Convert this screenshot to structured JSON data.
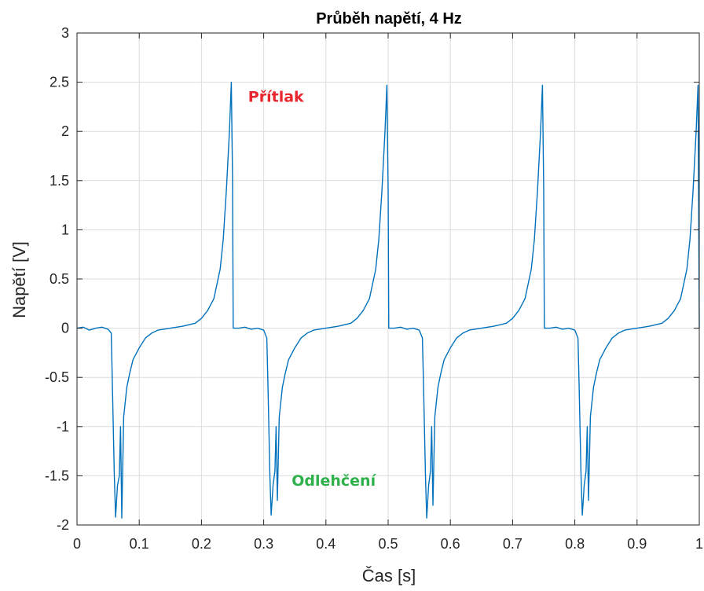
{
  "chart_data": {
    "type": "line",
    "title": "Průběh napětí, 4 Hz",
    "xlabel": "Čas [s]",
    "ylabel": "Napětí [V]",
    "xlim": [
      0,
      1
    ],
    "ylim": [
      -2,
      3
    ],
    "xticks": [
      "0",
      "0.1",
      "0.2",
      "0.3",
      "0.4",
      "0.5",
      "0.6",
      "0.7",
      "0.8",
      "0.9",
      "1"
    ],
    "yticks": [
      "3",
      "2.5",
      "2",
      "1.5",
      "1",
      "0.5",
      "0",
      "-0.5",
      "-1",
      "-1.5",
      "-2"
    ],
    "grid": true,
    "line_color": "#0072bd",
    "annotations": [
      {
        "text": "Přítlak",
        "color": "#e8262e",
        "x": 0.275,
        "y": 2.3
      },
      {
        "text": "Odlehčení",
        "color": "#2eb04a",
        "x": 0.345,
        "y": -1.6
      }
    ],
    "series": [
      {
        "x": [
          0,
          0.01,
          0.02,
          0.03,
          0.04,
          0.05,
          0.055,
          0.057,
          0.06,
          0.062,
          0.065,
          0.068,
          0.07,
          0.072,
          0.075,
          0.08,
          0.085,
          0.09,
          0.1,
          0.11,
          0.12,
          0.13,
          0.15,
          0.17,
          0.19,
          0.2,
          0.21,
          0.22,
          0.23,
          0.235,
          0.24,
          0.245,
          0.248,
          0.25,
          0.251,
          0.26,
          0.27,
          0.28,
          0.29,
          0.3,
          0.305,
          0.307,
          0.31,
          0.312,
          0.315,
          0.318,
          0.32,
          0.322,
          0.325,
          0.33,
          0.335,
          0.34,
          0.35,
          0.36,
          0.37,
          0.38,
          0.4,
          0.42,
          0.44,
          0.45,
          0.46,
          0.47,
          0.48,
          0.485,
          0.49,
          0.495,
          0.498,
          0.5,
          0.501,
          0.51,
          0.52,
          0.53,
          0.54,
          0.55,
          0.555,
          0.557,
          0.56,
          0.562,
          0.565,
          0.568,
          0.57,
          0.572,
          0.575,
          0.58,
          0.585,
          0.59,
          0.6,
          0.61,
          0.62,
          0.63,
          0.65,
          0.67,
          0.69,
          0.7,
          0.71,
          0.72,
          0.73,
          0.735,
          0.74,
          0.745,
          0.748,
          0.75,
          0.751,
          0.76,
          0.77,
          0.78,
          0.79,
          0.8,
          0.805,
          0.807,
          0.81,
          0.812,
          0.815,
          0.818,
          0.82,
          0.822,
          0.825,
          0.83,
          0.835,
          0.84,
          0.85,
          0.86,
          0.87,
          0.88,
          0.9,
          0.92,
          0.94,
          0.95,
          0.96,
          0.97,
          0.98,
          0.985,
          0.99,
          0.995,
          0.998,
          1.0
        ],
        "y": [
          0.0,
          0.01,
          -0.02,
          0.0,
          0.01,
          -0.01,
          -0.05,
          -0.6,
          -1.5,
          -1.92,
          -1.6,
          -1.5,
          -1.0,
          -1.93,
          -0.9,
          -0.6,
          -0.45,
          -0.32,
          -0.2,
          -0.1,
          -0.05,
          -0.02,
          0.0,
          0.02,
          0.05,
          0.1,
          0.18,
          0.3,
          0.6,
          0.9,
          1.4,
          2.0,
          2.5,
          1.5,
          0.0,
          0.0,
          0.01,
          -0.01,
          0.0,
          -0.02,
          -0.1,
          -0.6,
          -1.5,
          -1.9,
          -1.6,
          -1.45,
          -1.0,
          -1.75,
          -0.9,
          -0.6,
          -0.45,
          -0.32,
          -0.2,
          -0.1,
          -0.05,
          -0.02,
          0.0,
          0.02,
          0.05,
          0.1,
          0.18,
          0.3,
          0.6,
          0.9,
          1.4,
          2.0,
          2.47,
          1.4,
          0.0,
          0.0,
          0.01,
          -0.01,
          0.0,
          -0.02,
          -0.1,
          -0.6,
          -1.5,
          -1.93,
          -1.6,
          -1.45,
          -1.0,
          -1.8,
          -0.9,
          -0.6,
          -0.45,
          -0.32,
          -0.2,
          -0.1,
          -0.05,
          -0.02,
          0.0,
          0.02,
          0.05,
          0.1,
          0.18,
          0.3,
          0.6,
          0.9,
          1.4,
          2.0,
          2.47,
          1.4,
          0.0,
          0.0,
          0.01,
          -0.01,
          0.0,
          -0.02,
          -0.1,
          -0.6,
          -1.5,
          -1.9,
          -1.6,
          -1.45,
          -1.0,
          -1.75,
          -0.9,
          -0.6,
          -0.45,
          -0.32,
          -0.2,
          -0.1,
          -0.05,
          -0.02,
          0.0,
          0.02,
          0.05,
          0.1,
          0.18,
          0.3,
          0.6,
          0.9,
          1.4,
          2.0,
          2.47,
          0.0
        ]
      }
    ]
  }
}
